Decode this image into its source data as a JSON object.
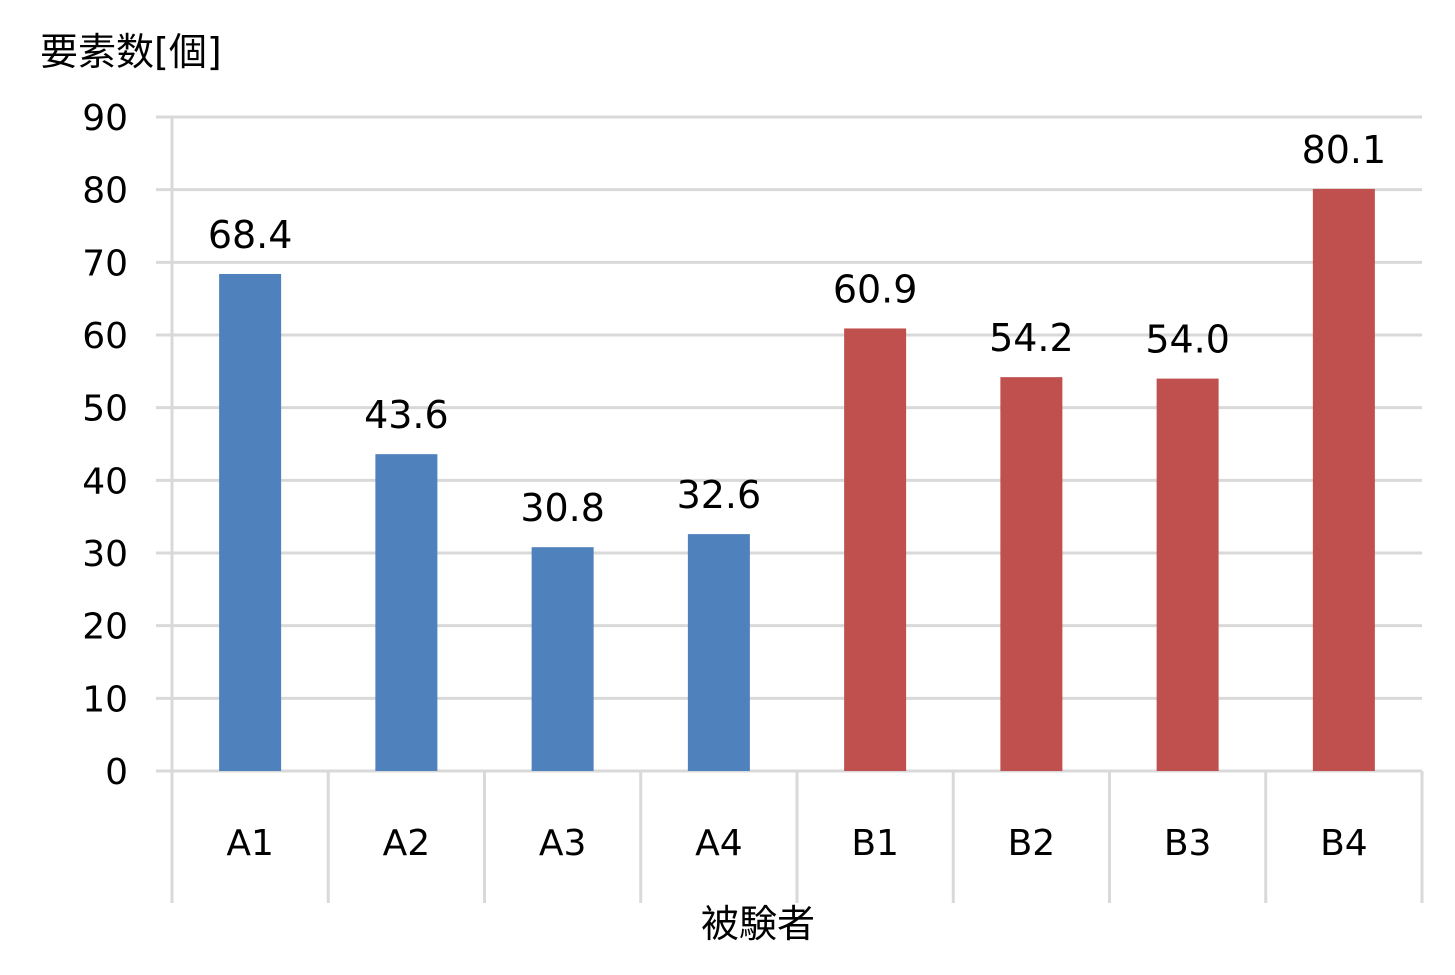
{
  "chart_data": {
    "type": "bar",
    "title": "",
    "ylabel": "要素数[個]",
    "xlabel": "被験者",
    "ylim": [
      0,
      90
    ],
    "yticks": [
      0,
      10,
      20,
      30,
      40,
      50,
      60,
      70,
      80,
      90
    ],
    "categories": [
      "A1",
      "A2",
      "A3",
      "A4",
      "B1",
      "B2",
      "B3",
      "B4"
    ],
    "values": [
      68.4,
      43.6,
      30.8,
      32.6,
      60.9,
      54.2,
      54.0,
      80.1
    ],
    "data_labels": [
      "68.4",
      "43.6",
      "30.8",
      "32.6",
      "60.9",
      "54.2",
      "54.0",
      "80.1"
    ],
    "bar_colors": [
      "#4F81BD",
      "#4F81BD",
      "#4F81BD",
      "#4F81BD",
      "#C0504D",
      "#C0504D",
      "#C0504D",
      "#C0504D"
    ],
    "grid": true,
    "gridline_color": "#D9D9D9",
    "legend": "none"
  }
}
